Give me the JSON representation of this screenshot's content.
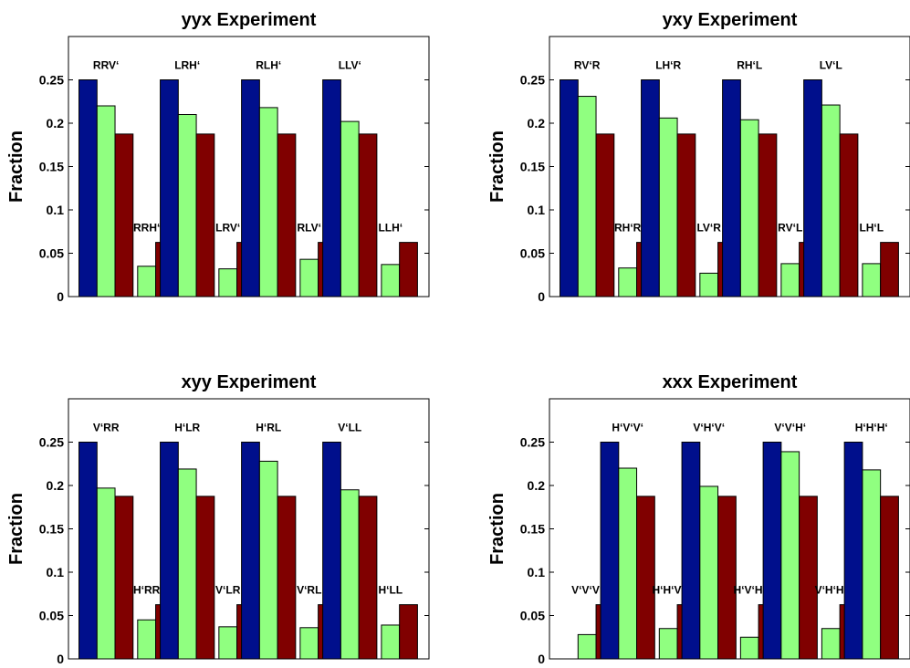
{
  "colors": {
    "navy": "#000f8c",
    "lightgreen": "#90ff80",
    "darkred": "#800000"
  },
  "chart_data": [
    {
      "type": "bar",
      "title": "yyx Experiment",
      "ylabel": "Fraction",
      "xlabel": "",
      "ylim": [
        0,
        0.3
      ],
      "yticks": [
        "0",
        "0.05",
        "0.1",
        "0.15",
        "0.2",
        "0.25"
      ],
      "groups": [
        {
          "label": "RRV‘",
          "values": [
            0.25,
            0.22,
            0.1875
          ]
        },
        {
          "label": "RRH‘",
          "values": [
            0,
            0.035,
            0.0625
          ]
        },
        {
          "label": "LRH‘",
          "values": [
            0.25,
            0.21,
            0.1875
          ]
        },
        {
          "label": "LRV‘",
          "values": [
            0,
            0.032,
            0.0625
          ]
        },
        {
          "label": "RLH‘",
          "values": [
            0.25,
            0.218,
            0.1875
          ]
        },
        {
          "label": "RLV‘",
          "values": [
            0,
            0.043,
            0.0625
          ]
        },
        {
          "label": "LLV‘",
          "values": [
            0.25,
            0.202,
            0.1875
          ]
        },
        {
          "label": "LLH‘",
          "values": [
            0,
            0.037,
            0.0625
          ]
        }
      ]
    },
    {
      "type": "bar",
      "title": "yxy Experiment",
      "ylabel": "Fraction",
      "xlabel": "",
      "ylim": [
        0,
        0.3
      ],
      "yticks": [
        "0",
        "0.05",
        "0.1",
        "0.15",
        "0.2",
        "0.25"
      ],
      "groups": [
        {
          "label": "RV‘R",
          "values": [
            0.25,
            0.231,
            0.1875
          ]
        },
        {
          "label": "RH‘R",
          "values": [
            0,
            0.033,
            0.0625
          ]
        },
        {
          "label": "LH‘R",
          "values": [
            0.25,
            0.206,
            0.1875
          ]
        },
        {
          "label": "LV‘R",
          "values": [
            0,
            0.027,
            0.0625
          ]
        },
        {
          "label": "RH‘L",
          "values": [
            0.25,
            0.204,
            0.1875
          ]
        },
        {
          "label": "RV‘L",
          "values": [
            0,
            0.038,
            0.0625
          ]
        },
        {
          "label": "LV‘L",
          "values": [
            0.25,
            0.221,
            0.1875
          ]
        },
        {
          "label": "LH‘L",
          "values": [
            0,
            0.038,
            0.0625
          ]
        }
      ]
    },
    {
      "type": "bar",
      "title": "xyy Experiment",
      "ylabel": "Fraction",
      "xlabel": "",
      "ylim": [
        0,
        0.3
      ],
      "yticks": [
        "0",
        "0.05",
        "0.1",
        "0.15",
        "0.2",
        "0.25"
      ],
      "groups": [
        {
          "label": "V‘RR",
          "values": [
            0.25,
            0.197,
            0.1875
          ]
        },
        {
          "label": "H‘RR",
          "values": [
            0,
            0.045,
            0.0625
          ]
        },
        {
          "label": "H‘LR",
          "values": [
            0.25,
            0.219,
            0.1875
          ]
        },
        {
          "label": "V‘LR",
          "values": [
            0,
            0.037,
            0.0625
          ]
        },
        {
          "label": "H‘RL",
          "values": [
            0.25,
            0.228,
            0.1875
          ]
        },
        {
          "label": "V‘RL",
          "values": [
            0,
            0.036,
            0.0625
          ]
        },
        {
          "label": "V‘LL",
          "values": [
            0.25,
            0.195,
            0.1875
          ]
        },
        {
          "label": "H‘LL",
          "values": [
            0,
            0.039,
            0.0625
          ]
        }
      ]
    },
    {
      "type": "bar",
      "title": "xxx Experiment",
      "ylabel": "Fraction",
      "xlabel": "",
      "ylim": [
        0,
        0.3
      ],
      "yticks": [
        "0",
        "0.05",
        "0.1",
        "0.15",
        "0.2",
        "0.25"
      ],
      "groups": [
        {
          "label": "V‘V‘V‘",
          "values": [
            0,
            0.028,
            0.0625
          ]
        },
        {
          "label": "H‘V‘V‘",
          "values": [
            0.25,
            0.22,
            0.1875
          ]
        },
        {
          "label": "H‘H‘V‘",
          "values": [
            0,
            0.035,
            0.0625
          ]
        },
        {
          "label": "V‘H‘V‘",
          "values": [
            0.25,
            0.199,
            0.1875
          ]
        },
        {
          "label": "H‘V‘H‘",
          "values": [
            0,
            0.025,
            0.0625
          ]
        },
        {
          "label": "V‘V‘H‘",
          "values": [
            0.25,
            0.239,
            0.1875
          ]
        },
        {
          "label": "V‘H‘H‘",
          "values": [
            0,
            0.035,
            0.0625
          ]
        },
        {
          "label": "H‘H‘H‘",
          "values": [
            0.25,
            0.218,
            0.1875
          ]
        }
      ]
    }
  ]
}
